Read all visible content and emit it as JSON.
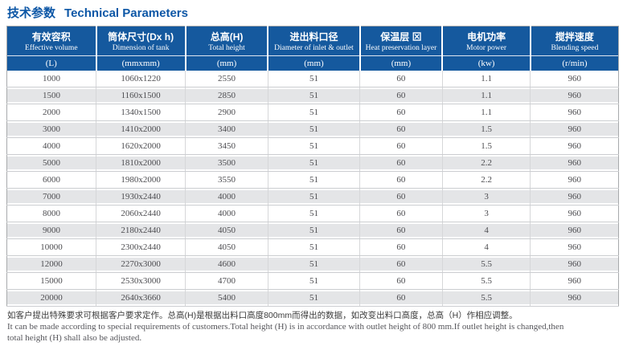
{
  "title": {
    "zh": "技术参数",
    "en": "Technical Parameters"
  },
  "table": {
    "columns": [
      {
        "zh": "有效容积",
        "en": "Effective volume",
        "unit": "(L)"
      },
      {
        "zh": "筒体尺寸(Dx h)",
        "en": "Dimension of tank",
        "unit": "(mmxmm)"
      },
      {
        "zh": "总高(H)",
        "en": "Total height",
        "unit": "(mm)"
      },
      {
        "zh": "进出料口径",
        "en": "Diameter of inlet & outlet",
        "unit": "(mm)"
      },
      {
        "zh": "保温层 ⊠",
        "en": "Heat preservation layer",
        "unit": "(mm)"
      },
      {
        "zh": "电机功率",
        "en": "Motor power",
        "unit": "(kw)"
      },
      {
        "zh": "搅拌速度",
        "en": "Blending speed",
        "unit": "(r/min)"
      }
    ],
    "rows": [
      [
        "1000",
        "1060x1220",
        "2550",
        "51",
        "60",
        "1.1",
        "960"
      ],
      [
        "1500",
        "1160x1500",
        "2850",
        "51",
        "60",
        "1.1",
        "960"
      ],
      [
        "2000",
        "1340x1500",
        "2900",
        "51",
        "60",
        "1.1",
        "960"
      ],
      [
        "3000",
        "1410x2000",
        "3400",
        "51",
        "60",
        "1.5",
        "960"
      ],
      [
        "4000",
        "1620x2000",
        "3450",
        "51",
        "60",
        "1.5",
        "960"
      ],
      [
        "5000",
        "1810x2000",
        "3500",
        "51",
        "60",
        "2.2",
        "960"
      ],
      [
        "6000",
        "1980x2000",
        "3550",
        "51",
        "60",
        "2.2",
        "960"
      ],
      [
        "7000",
        "1930x2440",
        "4000",
        "51",
        "60",
        "3",
        "960"
      ],
      [
        "8000",
        "2060x2440",
        "4000",
        "51",
        "60",
        "3",
        "960"
      ],
      [
        "9000",
        "2180x2440",
        "4050",
        "51",
        "60",
        "4",
        "960"
      ],
      [
        "10000",
        "2300x2440",
        "4050",
        "51",
        "60",
        "4",
        "960"
      ],
      [
        "12000",
        "2270x3000",
        "4600",
        "51",
        "60",
        "5.5",
        "960"
      ],
      [
        "15000",
        "2530x3000",
        "4700",
        "51",
        "60",
        "5.5",
        "960"
      ],
      [
        "20000",
        "2640x3660",
        "5400",
        "51",
        "60",
        "5.5",
        "960"
      ]
    ]
  },
  "footnote": {
    "zh": "如客户提出特殊要求可根据客户要求定作。总高(H)是根据出料口高度800mm而得出的数据，如改变出料口高度，总高（H）作相应调整。",
    "en1": "It can be made according to special requirements of customers.Total height (H) is in accordance with outlet height of 800 mm.If outlet height is changed,then",
    "en2": "total height (H) shall also be adjusted."
  },
  "colors": {
    "header_bg": "#15599e",
    "title_text": "#0d57a6",
    "row_alt_bg": "#e4e5e7"
  }
}
